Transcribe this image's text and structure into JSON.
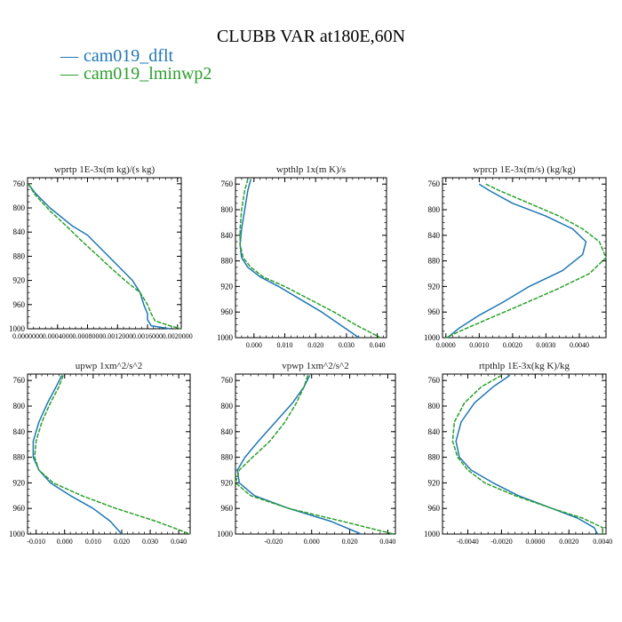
{
  "figure": {
    "title": "CLUBB VAR at180E,60N",
    "legend": [
      {
        "label": "cam019_dflt",
        "color": "#1f77b4"
      },
      {
        "label": "cam019_lminwp2",
        "color": "#2ca02c"
      }
    ]
  },
  "chart_data": [
    {
      "type": "line",
      "title": "wprtp  1E-3x(m kg)/(s kg)",
      "xlim": [
        0.0,
        0.00205
      ],
      "xticks": [
        0.0,
        0.0004,
        0.0008,
        0.0012,
        0.0016,
        0.002
      ],
      "xtick_labels": [
        "0.0000000",
        "0.0004000",
        "0.0008000",
        "0.0012000",
        "0.0016000",
        "0.0020000"
      ],
      "ylim": [
        1000,
        750
      ],
      "yticks": [
        760,
        800,
        840,
        880,
        920,
        960,
        1000
      ],
      "series": [
        {
          "name": "cam019_dflt",
          "x": [
            1e-05,
            0.0001,
            0.0003,
            0.0006,
            0.0008,
            0.001,
            0.0012,
            0.0014,
            0.0015,
            0.00155,
            0.0016,
            0.0016,
            0.00165,
            0.0019
          ],
          "y": [
            760,
            775,
            800,
            830,
            845,
            870,
            895,
            920,
            940,
            960,
            975,
            985,
            995,
            1000
          ]
        },
        {
          "name": "cam019_lminwp2",
          "x": [
            1e-05,
            0.0001,
            0.0003,
            0.0005,
            0.0007,
            0.0009,
            0.0011,
            0.0013,
            0.0015,
            0.0016,
            0.00165,
            0.0017,
            0.0019,
            0.00205
          ],
          "y": [
            760,
            778,
            805,
            828,
            852,
            875,
            898,
            920,
            940,
            960,
            975,
            987,
            995,
            1000
          ]
        }
      ]
    },
    {
      "type": "line",
      "title": "wpthlp  1x(m K)/s",
      "xlim": [
        -0.006,
        0.043
      ],
      "xticks": [
        0.0,
        0.01,
        0.02,
        0.03,
        0.04
      ],
      "xtick_labels": [
        "0.000",
        "0.010",
        "0.020",
        "0.030",
        "0.040"
      ],
      "ylim": [
        1000,
        750
      ],
      "yticks": [
        760,
        800,
        840,
        880,
        920,
        960,
        1000
      ],
      "series": [
        {
          "name": "cam019_dflt",
          "x": [
            -0.001,
            -0.002,
            -0.003,
            -0.004,
            -0.0045,
            -0.004,
            -0.002,
            0.002,
            0.008,
            0.015,
            0.022,
            0.028,
            0.034
          ],
          "y": [
            752,
            770,
            800,
            830,
            855,
            875,
            890,
            905,
            920,
            940,
            960,
            980,
            1000
          ]
        },
        {
          "name": "cam019_lminwp2",
          "x": [
            -0.002,
            -0.003,
            -0.004,
            -0.0045,
            -0.0045,
            -0.0035,
            -0.001,
            0.003,
            0.01,
            0.018,
            0.026,
            0.033,
            0.041
          ],
          "y": [
            752,
            770,
            800,
            830,
            855,
            875,
            890,
            905,
            920,
            940,
            960,
            980,
            1000
          ]
        }
      ]
    },
    {
      "type": "line",
      "title": "wprcp  1E-3x(m/s) (kg/kg)",
      "xlim": [
        -0.0001,
        0.0048
      ],
      "xticks": [
        0.0,
        0.001,
        0.002,
        0.003,
        0.004
      ],
      "xtick_labels": [
        "0.0000",
        "0.0010",
        "0.0020",
        "0.0030",
        "0.0040"
      ],
      "ylim": [
        1000,
        750
      ],
      "yticks": [
        760,
        800,
        840,
        880,
        920,
        960,
        1000
      ],
      "series": [
        {
          "name": "cam019_dflt",
          "x": [
            0.001,
            0.0013,
            0.002,
            0.003,
            0.0038,
            0.0042,
            0.0041,
            0.0035,
            0.0025,
            0.0017,
            0.001,
            0.0004,
            5e-05
          ],
          "y": [
            760,
            770,
            790,
            810,
            830,
            850,
            870,
            895,
            920,
            945,
            965,
            985,
            1000
          ]
        },
        {
          "name": "cam019_lminwp2",
          "x": [
            0.0012,
            0.0016,
            0.0025,
            0.0034,
            0.0041,
            0.0046,
            0.0048,
            0.0043,
            0.0033,
            0.0022,
            0.0013,
            0.0005,
            0.0
          ],
          "y": [
            760,
            770,
            790,
            810,
            830,
            850,
            875,
            900,
            925,
            950,
            970,
            988,
            1000
          ]
        }
      ]
    },
    {
      "type": "line",
      "title": "upwp  1xm^2/s^2",
      "xlim": [
        -0.013,
        0.044
      ],
      "xticks": [
        -0.01,
        0.0,
        0.01,
        0.02,
        0.03,
        0.04
      ],
      "xtick_labels": [
        "-0.010",
        "0.000",
        "0.010",
        "0.020",
        "0.030",
        "0.040"
      ],
      "ylim": [
        1000,
        750
      ],
      "yticks": [
        760,
        800,
        840,
        880,
        920,
        960,
        1000
      ],
      "series": [
        {
          "name": "cam019_dflt",
          "x": [
            -0.001,
            -0.003,
            -0.006,
            -0.009,
            -0.011,
            -0.011,
            -0.009,
            -0.005,
            0.002,
            0.01,
            0.016,
            0.02
          ],
          "y": [
            752,
            770,
            795,
            825,
            855,
            880,
            900,
            920,
            940,
            960,
            980,
            1000
          ]
        },
        {
          "name": "cam019_lminwp2",
          "x": [
            -0.0005,
            -0.002,
            -0.005,
            -0.008,
            -0.01,
            -0.0105,
            -0.009,
            -0.004,
            0.006,
            0.018,
            0.032,
            0.044
          ],
          "y": [
            752,
            770,
            795,
            825,
            855,
            880,
            900,
            920,
            940,
            960,
            980,
            1000
          ]
        }
      ]
    },
    {
      "type": "line",
      "title": "vpwp  1xm^2/s^2",
      "xlim": [
        -0.04,
        0.044
      ],
      "xticks": [
        -0.02,
        0.0,
        0.02,
        0.04
      ],
      "xtick_labels": [
        "-0.020",
        "0.000",
        "0.020",
        "0.040"
      ],
      "ylim": [
        1000,
        750
      ],
      "yticks": [
        760,
        800,
        840,
        880,
        920,
        960,
        1000
      ],
      "series": [
        {
          "name": "cam019_dflt",
          "x": [
            -0.001,
            -0.004,
            -0.01,
            -0.019,
            -0.028,
            -0.035,
            -0.039,
            -0.038,
            -0.03,
            -0.012,
            0.01,
            0.026
          ],
          "y": [
            752,
            770,
            795,
            825,
            855,
            880,
            900,
            920,
            940,
            960,
            980,
            1000
          ]
        },
        {
          "name": "cam019_lminwp2",
          "x": [
            -0.002,
            -0.004,
            -0.008,
            -0.014,
            -0.022,
            -0.031,
            -0.038,
            -0.04,
            -0.032,
            -0.012,
            0.016,
            0.043
          ],
          "y": [
            752,
            770,
            795,
            825,
            855,
            880,
            900,
            920,
            940,
            960,
            980,
            1000
          ]
        }
      ]
    },
    {
      "type": "line",
      "title": "rtpthlp  1E-3x(kg K)/kg",
      "xlim": [
        -0.0055,
        0.0042
      ],
      "xticks": [
        -0.004,
        -0.002,
        0.0,
        0.002,
        0.004
      ],
      "xtick_labels": [
        "-0.0040",
        "-0.0020",
        "0.0000",
        "0.0020",
        "0.0040"
      ],
      "ylim": [
        1000,
        750
      ],
      "yticks": [
        760,
        800,
        840,
        880,
        920,
        960,
        1000
      ],
      "series": [
        {
          "name": "cam019_dflt",
          "x": [
            -0.0015,
            -0.0025,
            -0.0036,
            -0.0044,
            -0.0047,
            -0.0045,
            -0.0038,
            -0.0025,
            -0.001,
            0.001,
            0.0025,
            0.0035,
            0.0037
          ],
          "y": [
            752,
            770,
            795,
            825,
            855,
            880,
            900,
            920,
            940,
            960,
            975,
            990,
            1000
          ]
        },
        {
          "name": "cam019_lminwp2",
          "x": [
            -0.002,
            -0.0032,
            -0.0042,
            -0.0048,
            -0.0049,
            -0.0046,
            -0.004,
            -0.003,
            -0.0012,
            0.001,
            0.0028,
            0.004,
            0.004
          ],
          "y": [
            752,
            770,
            795,
            825,
            855,
            880,
            900,
            920,
            940,
            960,
            975,
            990,
            1000
          ]
        }
      ]
    }
  ]
}
